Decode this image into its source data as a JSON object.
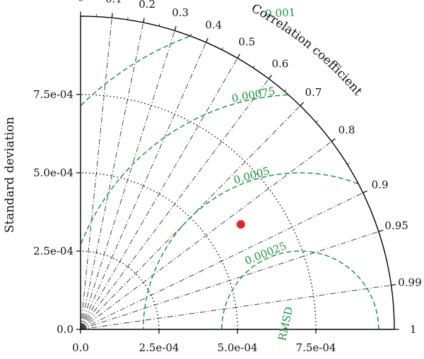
{
  "chart_data": {
    "type": "taylor",
    "ylabel": "Standard deviation",
    "corr_axis_label": "Correlation coefficient",
    "rms_axis_label": "RMSD",
    "sd_max": 0.001,
    "sd_ticks": [
      0,
      0.00025,
      0.0005,
      0.00075
    ],
    "sd_tick_labels": [
      "0.0",
      "2.5e-04",
      "5.0e-04",
      "7.5e-04"
    ],
    "corr_ticks": [
      0,
      0.1,
      0.2,
      0.3,
      0.4,
      0.5,
      0.6,
      0.7,
      0.8,
      0.9,
      0.95,
      0.99,
      1
    ],
    "corr_tick_labels": [
      "0",
      "0.1",
      "0.2",
      "0.3",
      "0.4",
      "0.5",
      "0.6",
      "0.7",
      "0.8",
      "0.9",
      "0.95",
      "0.99",
      "1"
    ],
    "reference_sd": 0.0007,
    "rms_contours": [
      0.00025,
      0.0005,
      0.00075,
      0.001
    ],
    "rms_contour_labels": [
      "0.00025",
      "0.0005",
      "0.00075",
      "0.001"
    ],
    "points": [
      {
        "sd": 0.000611,
        "corr": 0.836,
        "color": "#e3242b"
      }
    ],
    "colors": {
      "rms": "#1a9641",
      "point": "#e3242b"
    },
    "grid": true
  }
}
